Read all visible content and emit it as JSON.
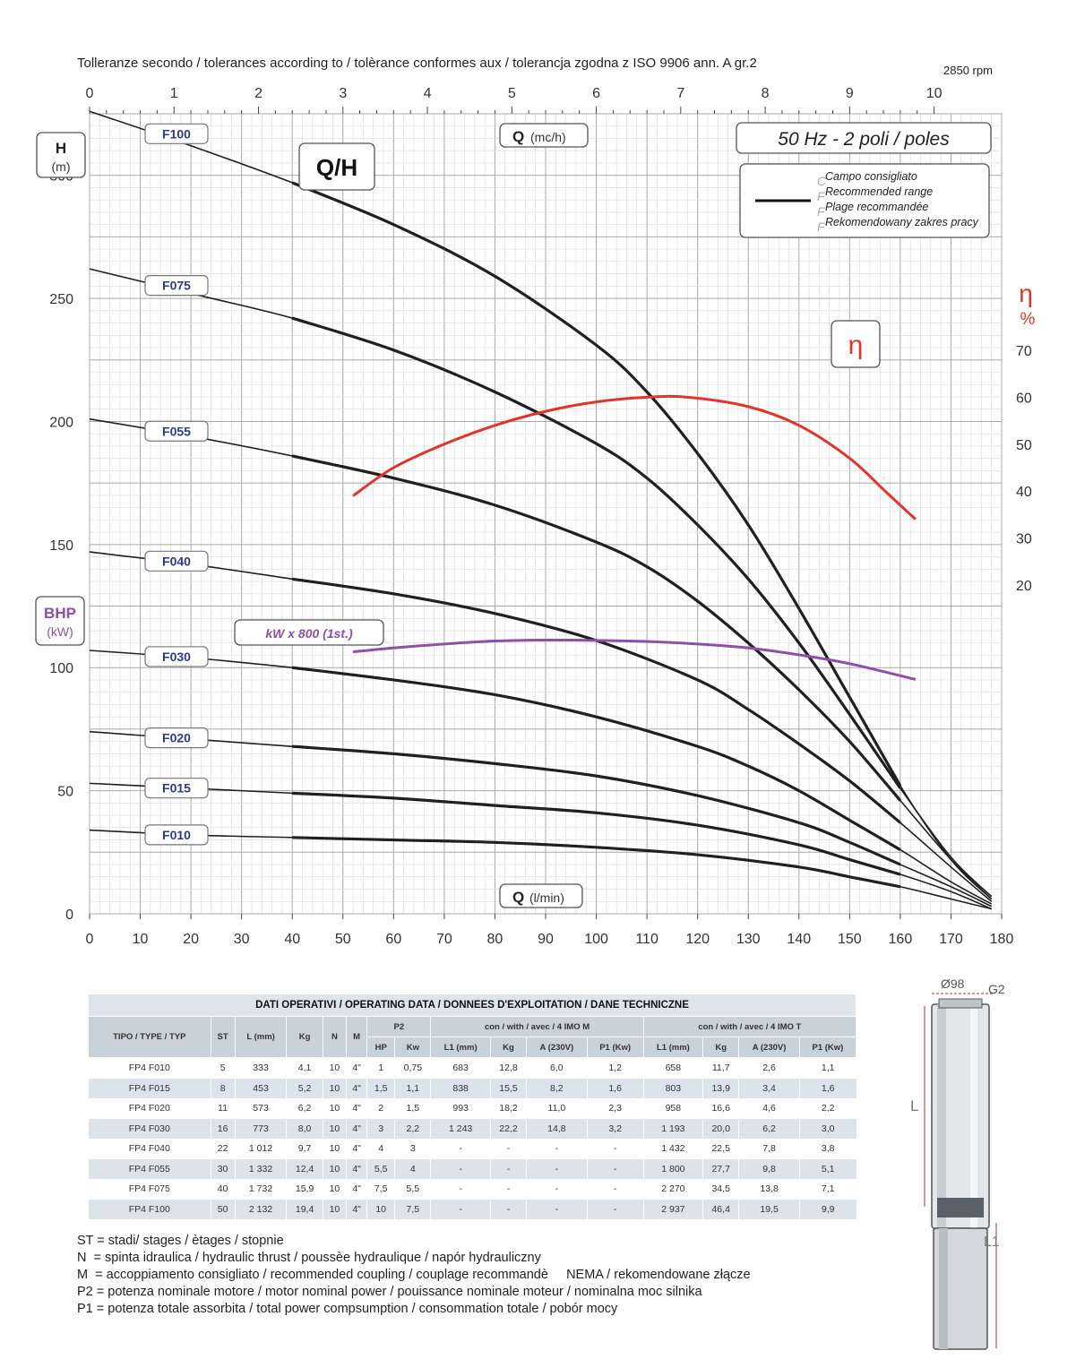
{
  "header": {
    "tolerance_text": "Tolleranze secondo / tolerances according to / tolèrance conformes aux / tolerancja zgodna z ISO 9906 ann. A gr.2",
    "rpm": "2850 rpm"
  },
  "chart_data": {
    "type": "line",
    "title": "Q/H",
    "frequency_label": "50 Hz - 2 poli / poles",
    "x_top_label": "Q",
    "x_top_unit": "(mc/h)",
    "x_top_ticks": [
      0,
      1,
      2,
      3,
      4,
      5,
      6,
      7,
      8,
      9,
      10
    ],
    "x_bottom_label": "Q",
    "x_bottom_unit": "(l/min)",
    "x_bottom_ticks": [
      0,
      10,
      20,
      30,
      40,
      50,
      60,
      70,
      80,
      90,
      100,
      110,
      120,
      130,
      140,
      150,
      160,
      170,
      180
    ],
    "xlim": [
      0,
      180
    ],
    "y_left_label": "H",
    "y_left_unit": "(m)",
    "y_left_ticks": [
      0,
      50,
      100,
      150,
      200,
      250,
      300
    ],
    "ylim": [
      0,
      325
    ],
    "y_right_label": "η",
    "y_right_unit": "%",
    "y_right_ticks": [
      20,
      30,
      40,
      50,
      60,
      70
    ],
    "bhp_label": "BHP",
    "bhp_unit": "(kW)",
    "eta_tag": "η",
    "power_tag": "kW x 800 (1st.)",
    "legend": {
      "lines": [
        "Campo consigliato",
        "Recommended range",
        "Plage recommandée",
        "Rekomendowany zakres pracy"
      ],
      "initials": [
        "C",
        "F",
        "F",
        "F"
      ]
    },
    "colors": {
      "curves": "#231f20",
      "efficiency": "#e3342a",
      "power": "#8e4fa8",
      "labels": "#2b3a8c"
    },
    "series": [
      {
        "name": "F100",
        "x": [
          0,
          20,
          40,
          60,
          80,
          100,
          110,
          120,
          130,
          140,
          150,
          160,
          170,
          178
        ],
        "y": [
          326,
          312,
          297,
          280,
          259,
          231,
          212,
          187,
          158,
          124,
          88,
          52,
          22,
          6
        ]
      },
      {
        "name": "F075",
        "x": [
          0,
          20,
          40,
          60,
          80,
          100,
          110,
          120,
          130,
          140,
          150,
          160,
          170,
          178
        ],
        "y": [
          262,
          252,
          242,
          229,
          212,
          191,
          177,
          158,
          136,
          110,
          81,
          51,
          23,
          7
        ]
      },
      {
        "name": "F055",
        "x": [
          0,
          20,
          40,
          60,
          80,
          100,
          110,
          120,
          130,
          140,
          150,
          160,
          170,
          178
        ],
        "y": [
          201,
          194,
          186,
          177,
          166,
          151,
          141,
          127,
          110,
          91,
          70,
          46,
          22,
          6
        ]
      },
      {
        "name": "F040",
        "x": [
          0,
          20,
          40,
          60,
          80,
          100,
          120,
          130,
          140,
          150,
          160,
          170,
          178
        ],
        "y": [
          147,
          142,
          136,
          130,
          122,
          111,
          95,
          83,
          69,
          54,
          37,
          19,
          5
        ]
      },
      {
        "name": "F030",
        "x": [
          0,
          20,
          40,
          60,
          80,
          100,
          120,
          130,
          140,
          150,
          160,
          170,
          178
        ],
        "y": [
          107,
          104,
          100,
          95,
          89,
          80,
          68,
          60,
          50,
          38,
          26,
          13,
          4
        ]
      },
      {
        "name": "F020",
        "x": [
          0,
          20,
          40,
          60,
          80,
          100,
          120,
          140,
          150,
          160,
          170,
          178
        ],
        "y": [
          74,
          71,
          68,
          65,
          61,
          56,
          48,
          37,
          29,
          20,
          11,
          3
        ]
      },
      {
        "name": "F015",
        "x": [
          0,
          20,
          40,
          60,
          80,
          100,
          120,
          140,
          150,
          160,
          170,
          178
        ],
        "y": [
          53,
          51,
          49,
          47,
          44,
          41,
          36,
          28,
          22,
          16,
          9,
          2
        ]
      },
      {
        "name": "F010",
        "x": [
          0,
          20,
          40,
          60,
          80,
          100,
          120,
          140,
          150,
          160,
          170,
          178
        ],
        "y": [
          34,
          32,
          31,
          30,
          29,
          27,
          24,
          19,
          15,
          11,
          6,
          2
        ]
      }
    ],
    "efficiency": {
      "x": [
        52,
        60,
        70,
        80,
        90,
        100,
        110,
        118,
        130,
        140,
        150,
        157,
        163
      ],
      "y": [
        39,
        45,
        50,
        54,
        57,
        59,
        60,
        60,
        58,
        54,
        47,
        40,
        34
      ]
    },
    "power_kw": {
      "x": [
        52,
        60,
        70,
        80,
        90,
        100,
        110,
        120,
        130,
        140,
        150,
        163
      ],
      "y": [
        0.133,
        0.135,
        0.137,
        0.1385,
        0.139,
        0.1388,
        0.1383,
        0.137,
        0.135,
        0.1315,
        0.127,
        0.119
      ]
    }
  },
  "table": {
    "title": "DATI OPERATIVI / OPERATING DATA / DONNEES D'EXPLOITATION / DANE TECHNICZNE",
    "col_type": "TIPO / TYPE / TYP",
    "col_st": "ST",
    "col_l": "L (mm)",
    "col_kg": "Kg",
    "col_n": "N",
    "col_m": "M",
    "group_p2": "P2",
    "group_m": "con / with / avec / 4 IMO M",
    "group_t": "con / with / avec / 4 IMO T",
    "sub_cols": [
      "HP",
      "Kw",
      "L1 (mm)",
      "Kg",
      "A (230V)",
      "P1 (Kw)",
      "L1 (mm)",
      "Kg",
      "A (230V)",
      "P1 (Kw)"
    ],
    "rows": [
      [
        "FP4 F010",
        "5",
        "333",
        "4,1",
        "10",
        "4\"",
        "1",
        "0,75",
        "683",
        "12,8",
        "6,0",
        "1,2",
        "658",
        "11,7",
        "2,6",
        "1,1"
      ],
      [
        "FP4 F015",
        "8",
        "453",
        "5,2",
        "10",
        "4\"",
        "1,5",
        "1,1",
        "838",
        "15,5",
        "8,2",
        "1,6",
        "803",
        "13,9",
        "3,4",
        "1,6"
      ],
      [
        "FP4 F020",
        "11",
        "573",
        "6,2",
        "10",
        "4\"",
        "2",
        "1,5",
        "993",
        "18,2",
        "11,0",
        "2,3",
        "958",
        "16,6",
        "4,6",
        "2,2"
      ],
      [
        "FP4 F030",
        "16",
        "773",
        "8,0",
        "10",
        "4\"",
        "3",
        "2,2",
        "1 243",
        "22,2",
        "14,8",
        "3,2",
        "1 193",
        "20,0",
        "6,2",
        "3,0"
      ],
      [
        "FP4 F040",
        "22",
        "1 012",
        "9,7",
        "10",
        "4\"",
        "4",
        "3",
        "-",
        "-",
        "-",
        "-",
        "1 432",
        "22,5",
        "7,8",
        "3,8"
      ],
      [
        "FP4 F055",
        "30",
        "1 332",
        "12,4",
        "10",
        "4\"",
        "5,5",
        "4",
        "-",
        "-",
        "-",
        "-",
        "1 800",
        "27,7",
        "9,8",
        "5,1"
      ],
      [
        "FP4 F075",
        "40",
        "1 732",
        "15,9",
        "10",
        "4\"",
        "7,5",
        "5,5",
        "-",
        "-",
        "-",
        "-",
        "2 270",
        "34,5",
        "13,8",
        "7,1"
      ],
      [
        "FP4 F100",
        "50",
        "2 132",
        "19,4",
        "10",
        "4\"",
        "10",
        "7,5",
        "-",
        "-",
        "-",
        "-",
        "2 937",
        "46,4",
        "19,5",
        "9,9"
      ]
    ]
  },
  "notes": [
    "ST = stadi/ stages / ètages / stopnie",
    "N  = spinta idraulica / hydraulic thrust / poussèe hydraulique / napór hydrauliczny",
    "M  = accoppiamento consigliato / recommended coupling / couplage recommandè     NEMA / rekomendowane złącze",
    "P2 = potenza nominale motore / motor nominal power / pouissance nominale moteur / nominalna moc silnika",
    "P1 = potenza totale assorbita / total power compsumption / consommation totale / pobór mocy"
  ],
  "pump": {
    "diameter": "Ø98",
    "thread": "G2",
    "l_label": "L",
    "l1_label": "L1"
  }
}
